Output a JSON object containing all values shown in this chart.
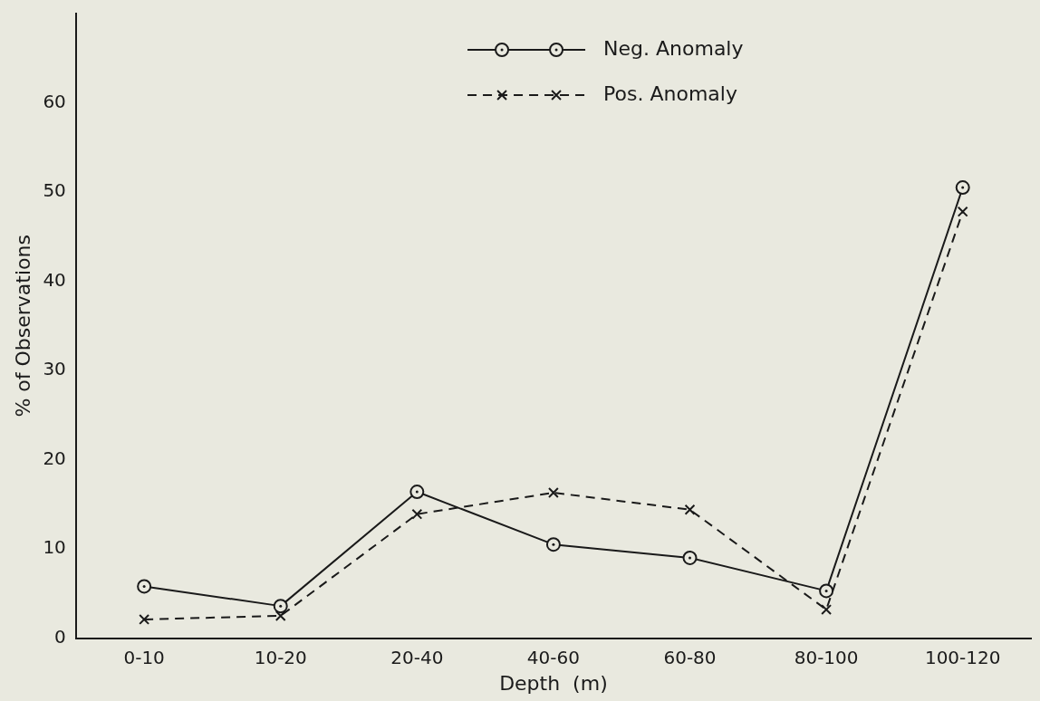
{
  "chart_data": {
    "type": "line",
    "xlabel": "Depth  (m)",
    "ylabel": "% of Observations",
    "categories": [
      "0-10",
      "10-20",
      "20-40",
      "40-60",
      "60-80",
      "80-100",
      "100-120"
    ],
    "series": [
      {
        "name": "Neg. Anomaly",
        "color": "#1a1a1a",
        "marker": "circle",
        "line_style": "solid",
        "values": [
          5.8,
          3.6,
          16.4,
          10.5,
          9.0,
          5.3,
          50.5
        ]
      },
      {
        "name": "Pos. Anomaly",
        "color": "#1a1a1a",
        "marker": "cross",
        "line_style": "dashed",
        "values": [
          2.1,
          2.5,
          13.9,
          16.3,
          14.4,
          3.2,
          47.8
        ]
      }
    ],
    "ylim": [
      0,
      70
    ],
    "yticks": [
      0,
      10,
      20,
      30,
      40,
      50,
      60
    ],
    "grid": false,
    "legend": "top"
  }
}
